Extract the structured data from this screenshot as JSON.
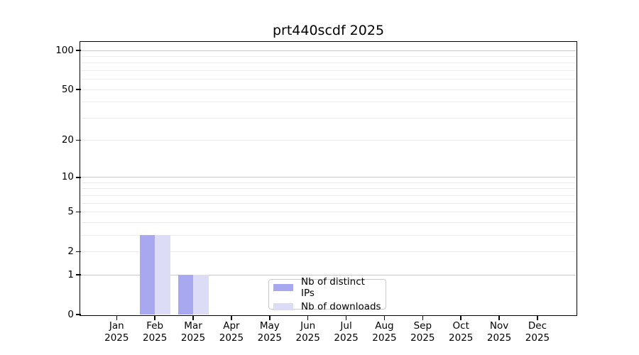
{
  "figure": {
    "background": "#ffffff",
    "title": "prt440scdf 2025"
  },
  "chart_data": {
    "type": "bar",
    "title": "prt440scdf 2025",
    "categories": [
      "Jan 2025",
      "Feb 2025",
      "Mar 2025",
      "Apr 2025",
      "May 2025",
      "Jun 2025",
      "Jul 2025",
      "Aug 2025",
      "Sep 2025",
      "Oct 2025",
      "Nov 2025",
      "Dec 2025"
    ],
    "series": [
      {
        "name": "Nb of distinct IPs",
        "color": "#a8a8f0",
        "values": [
          0,
          3,
          1,
          0,
          0,
          0,
          0,
          0,
          0,
          0,
          0,
          0
        ]
      },
      {
        "name": "Nb of downloads",
        "color": "#dcdcf7",
        "values": [
          0,
          3,
          1,
          0,
          0,
          0,
          0,
          0,
          0,
          0,
          0,
          0
        ]
      }
    ],
    "xlabel": "",
    "ylabel": "",
    "yscale": "log1p",
    "ylim": [
      0,
      115
    ],
    "yticks": [
      0,
      1,
      2,
      5,
      10,
      20,
      50,
      100
    ],
    "grid": {
      "major_values": [
        1,
        10,
        100
      ],
      "minor_values": [
        2,
        3,
        4,
        5,
        6,
        7,
        8,
        9,
        20,
        30,
        40,
        50,
        60,
        70,
        80,
        90
      ],
      "major_color": "#c9c9c9",
      "minor_color": "#ededed"
    },
    "legend": {
      "position": "lower center",
      "entries": [
        "Nb of distinct IPs",
        "Nb of downloads"
      ]
    }
  }
}
